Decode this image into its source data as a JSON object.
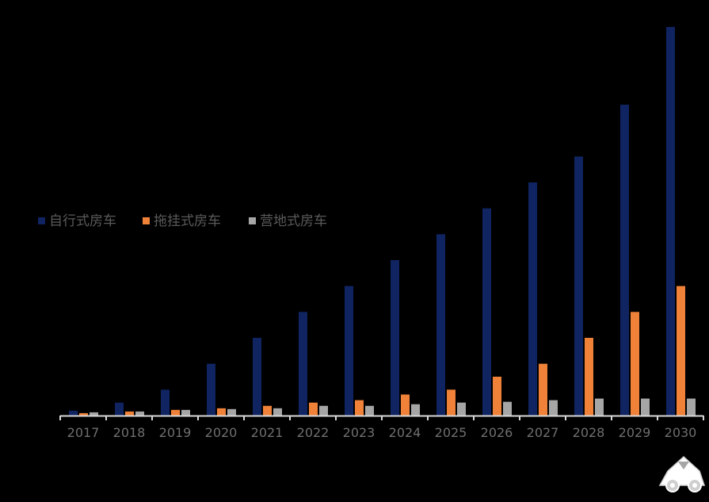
{
  "chart_data": {
    "type": "bar",
    "categories": [
      "2017",
      "2018",
      "2019",
      "2020",
      "2021",
      "2022",
      "2023",
      "2024",
      "2025",
      "2026",
      "2027",
      "2028",
      "2029",
      "2030"
    ],
    "series": [
      {
        "name": "自行式房车",
        "color": "#0f2461",
        "values": [
          6,
          16,
          32,
          64,
          96,
          128,
          160,
          192,
          224,
          256,
          288,
          320,
          384,
          480
        ]
      },
      {
        "name": "拖挂式房车",
        "color": "#ef8138",
        "values": [
          3,
          5,
          7,
          9,
          12,
          16,
          19,
          26,
          32,
          48,
          64,
          96,
          128,
          160
        ]
      },
      {
        "name": "营地式房车",
        "color": "#a6a6a6",
        "values": [
          4,
          5,
          7,
          8,
          9,
          12,
          12,
          14,
          16,
          17,
          19,
          21,
          21,
          21
        ]
      }
    ],
    "ylim": [
      0,
      500
    ],
    "grid": false,
    "legend_position": "middle-left"
  },
  "colors": {
    "background": "#000000",
    "axis": "#d9d9d9",
    "tick_label": "#6f6f6f",
    "legend_text": "#5a5a5a"
  },
  "watermark": {
    "icon": "rv-logo-icon"
  }
}
